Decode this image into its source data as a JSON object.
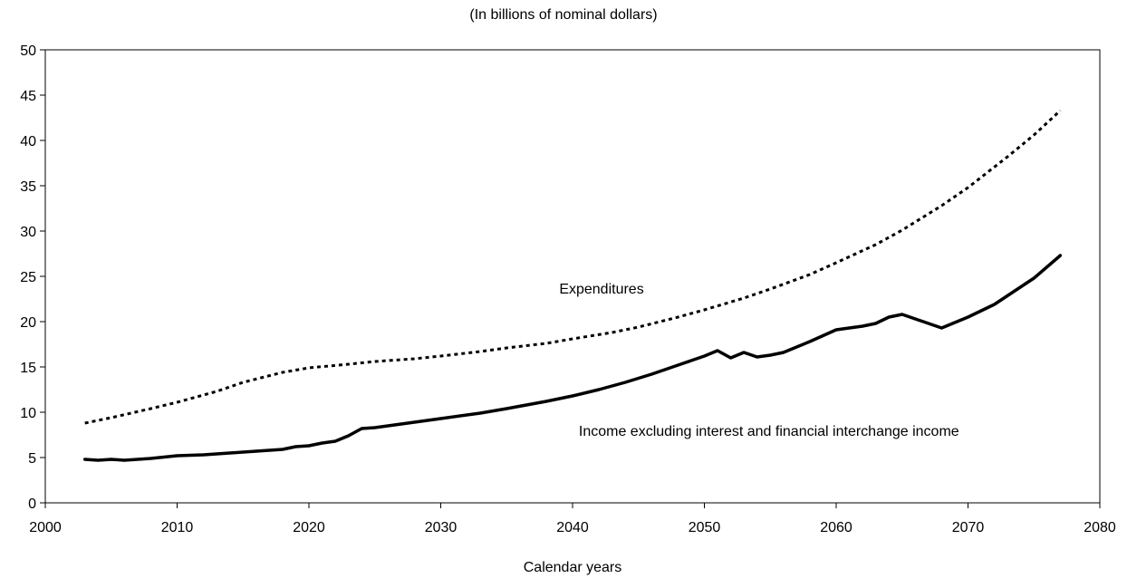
{
  "chart_data": {
    "type": "line",
    "subtitle": "(In billions of nominal dollars)",
    "xlabel": "Calendar years",
    "ylabel": "",
    "xlim": [
      2000,
      2080
    ],
    "ylim": [
      0,
      50
    ],
    "xticks": [
      2000,
      2010,
      2020,
      2030,
      2040,
      2050,
      2060,
      2070,
      2080
    ],
    "yticks": [
      0,
      5,
      10,
      15,
      20,
      25,
      30,
      35,
      40,
      45,
      50
    ],
    "grid": false,
    "legend": "none",
    "series": [
      {
        "name": "Expenditures",
        "style": "dotted",
        "color": "#000000",
        "x": [
          2003,
          2005,
          2008,
          2010,
          2013,
          2015,
          2018,
          2020,
          2023,
          2025,
          2028,
          2030,
          2033,
          2035,
          2038,
          2040,
          2043,
          2045,
          2048,
          2050,
          2053,
          2055,
          2058,
          2060,
          2063,
          2065,
          2068,
          2070,
          2073,
          2075,
          2077
        ],
        "values": [
          8.8,
          9.4,
          10.4,
          11.1,
          12.3,
          13.3,
          14.4,
          14.9,
          15.3,
          15.6,
          15.9,
          16.2,
          16.7,
          17.1,
          17.6,
          18.1,
          18.8,
          19.4,
          20.5,
          21.3,
          22.6,
          23.6,
          25.2,
          26.5,
          28.5,
          30.1,
          32.8,
          34.8,
          38.2,
          40.6,
          43.3
        ]
      },
      {
        "name": "Income excluding interest and financial interchange income",
        "style": "solid",
        "color": "#000000",
        "x": [
          2003,
          2004,
          2005,
          2006,
          2008,
          2010,
          2012,
          2014,
          2016,
          2018,
          2019,
          2020,
          2021,
          2022,
          2023,
          2024,
          2025,
          2027,
          2030,
          2033,
          2035,
          2038,
          2040,
          2042,
          2044,
          2046,
          2048,
          2050,
          2051,
          2052,
          2053,
          2054,
          2055,
          2056,
          2058,
          2060,
          2062,
          2063,
          2064,
          2065,
          2066,
          2068,
          2070,
          2072,
          2075,
          2077
        ],
        "values": [
          4.8,
          4.7,
          4.8,
          4.7,
          4.9,
          5.2,
          5.3,
          5.5,
          5.7,
          5.9,
          6.2,
          6.3,
          6.6,
          6.8,
          7.4,
          8.2,
          8.3,
          8.7,
          9.3,
          9.9,
          10.4,
          11.2,
          11.8,
          12.5,
          13.3,
          14.2,
          15.2,
          16.2,
          16.8,
          16.0,
          16.6,
          16.1,
          16.3,
          16.6,
          17.8,
          19.1,
          19.5,
          19.8,
          20.5,
          20.8,
          20.3,
          19.3,
          20.5,
          21.9,
          24.8,
          27.3
        ]
      }
    ],
    "annotations": [
      {
        "text": "Expenditures",
        "x": 2042.2,
        "y": 23.1,
        "anchor": "middle"
      },
      {
        "text": "Income excluding interest and financial interchange income",
        "x": 2054.9,
        "y": 7.4,
        "anchor": "middle"
      }
    ]
  }
}
